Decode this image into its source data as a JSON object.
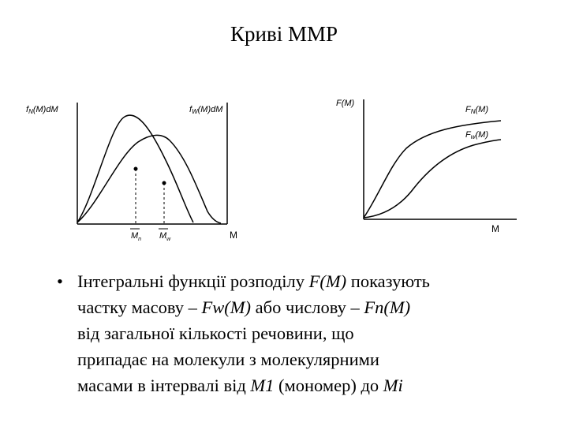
{
  "title": "Криві ММР",
  "left_plot": {
    "y_label_left": "fN(M)dM",
    "y_label_right": "fW(M)dM",
    "x_label": "M",
    "marker_n": "Mn",
    "marker_w": "Mw"
  },
  "right_plot": {
    "y_label": "F(M)",
    "curve_upper": "FN(M)",
    "curve_lower": "Fw(M)",
    "x_label": "M"
  },
  "bullet": {
    "symbol": "•",
    "lines": [
      [
        "Інтегральні функції розподілу ",
        "F(M)",
        " показують"
      ],
      [
        "частку масову – ",
        "Fw(M)",
        " або числову – ",
        "Fn(M)"
      ],
      [
        "від загальної кількості речовини,  що"
      ],
      [
        "припадає на молекули з молекулярними"
      ],
      [
        "масами в інтервалі від ",
        "M1",
        " (мономер) до ",
        "Mi"
      ]
    ]
  }
}
